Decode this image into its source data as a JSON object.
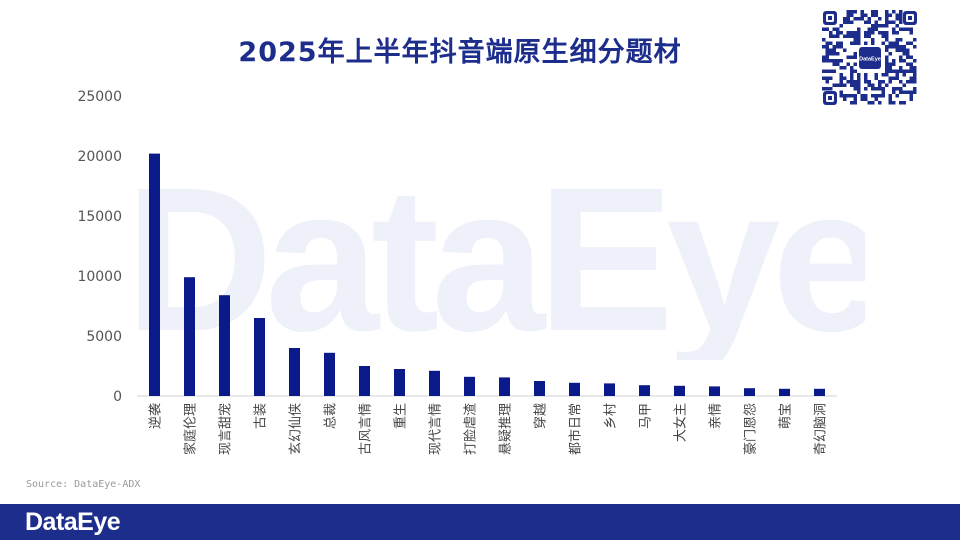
{
  "chart_data": {
    "type": "bar",
    "title": "2025年上半年抖音端原生细分题材",
    "xlabel": "",
    "ylabel": "",
    "ylim": [
      0,
      25000
    ],
    "yticks": [
      0,
      5000,
      10000,
      15000,
      20000,
      25000
    ],
    "ytick_labels": [
      "0",
      "5000",
      "10000",
      "15000",
      "20000",
      "25000"
    ],
    "grid": false,
    "bar_color": "#0a1a8a",
    "categories": [
      "逆袭",
      "家庭伦理",
      "现言甜宠",
      "古装",
      "玄幻仙侠",
      "总裁",
      "古风言情",
      "重生",
      "现代言情",
      "打脸虐渣",
      "悬疑推理",
      "穿越",
      "都市日常",
      "乡村",
      "马甲",
      "大女主",
      "亲情",
      "豪门恩怨",
      "萌宝",
      "奇幻脑洞"
    ],
    "values": [
      20200,
      9900,
      8400,
      6500,
      4000,
      3600,
      2500,
      2250,
      2100,
      1600,
      1550,
      1250,
      1100,
      1050,
      900,
      850,
      800,
      650,
      600,
      600
    ]
  },
  "watermark_text": "DataEye",
  "source_text": "Source: DataEye-ADX",
  "footer": {
    "logo_text": "DataEye",
    "bg_color": "#1d2d8c"
  },
  "qr": {
    "center_label": "DataEye",
    "icon": "qr-code-icon"
  }
}
